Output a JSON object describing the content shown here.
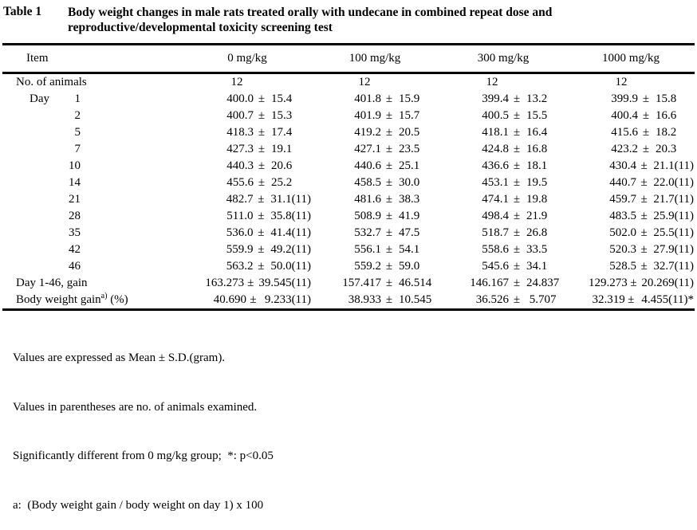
{
  "title": {
    "label": "Table 1",
    "lines": [
      "Body weight changes in male rats treated orally with undecane in combined repeat dose and",
      "reproductive/developmental toxicity screening test"
    ]
  },
  "pm_symbol": "±",
  "table": {
    "columns": [
      "Item",
      "0 mg/kg",
      "100 mg/kg",
      "300 mg/kg",
      "1000 mg/kg"
    ],
    "rows": [
      {
        "type": "count",
        "label": "No. of animals",
        "values": [
          "12",
          "12",
          "12",
          "12"
        ]
      },
      {
        "type": "day",
        "word": "Day",
        "day": "1",
        "cells": [
          {
            "v": "400.0",
            "sd": "15.4"
          },
          {
            "v": "401.8",
            "sd": "15.9"
          },
          {
            "v": "399.4",
            "sd": "13.2"
          },
          {
            "v": "399.9",
            "sd": "15.8"
          }
        ]
      },
      {
        "type": "day",
        "day": "2",
        "cells": [
          {
            "v": "400.7",
            "sd": "15.3"
          },
          {
            "v": "401.9",
            "sd": "15.7"
          },
          {
            "v": "400.5",
            "sd": "15.5"
          },
          {
            "v": "400.4",
            "sd": "16.6"
          }
        ]
      },
      {
        "type": "day",
        "day": "5",
        "cells": [
          {
            "v": "418.3",
            "sd": "17.4"
          },
          {
            "v": "419.2",
            "sd": "20.5"
          },
          {
            "v": "418.1",
            "sd": "16.4"
          },
          {
            "v": "415.6",
            "sd": "18.2"
          }
        ]
      },
      {
        "type": "day",
        "day": "7",
        "cells": [
          {
            "v": "427.3",
            "sd": "19.1"
          },
          {
            "v": "427.1",
            "sd": "23.5"
          },
          {
            "v": "424.8",
            "sd": "16.8"
          },
          {
            "v": "423.2",
            "sd": "20.3"
          }
        ]
      },
      {
        "type": "day",
        "day": "10",
        "cells": [
          {
            "v": "440.3",
            "sd": "20.6"
          },
          {
            "v": "440.6",
            "sd": "25.1"
          },
          {
            "v": "436.6",
            "sd": "18.1"
          },
          {
            "v": "430.4",
            "sd": "21.1",
            "n": "(11)"
          }
        ]
      },
      {
        "type": "day",
        "day": "14",
        "cells": [
          {
            "v": "455.6",
            "sd": "25.2"
          },
          {
            "v": "458.5",
            "sd": "30.0"
          },
          {
            "v": "453.1",
            "sd": "19.5"
          },
          {
            "v": "440.7",
            "sd": "22.0",
            "n": "(11)"
          }
        ]
      },
      {
        "type": "day",
        "day": "21",
        "cells": [
          {
            "v": "482.7",
            "sd": "31.1",
            "n": "(11)"
          },
          {
            "v": "481.6",
            "sd": "38.3"
          },
          {
            "v": "474.1",
            "sd": "19.8"
          },
          {
            "v": "459.7",
            "sd": "21.7",
            "n": "(11)"
          }
        ]
      },
      {
        "type": "day",
        "day": "28",
        "cells": [
          {
            "v": "511.0",
            "sd": "35.8",
            "n": "(11)"
          },
          {
            "v": "508.9",
            "sd": "41.9"
          },
          {
            "v": "498.4",
            "sd": "21.9"
          },
          {
            "v": "483.5",
            "sd": "25.9",
            "n": "(11)"
          }
        ]
      },
      {
        "type": "day",
        "day": "35",
        "cells": [
          {
            "v": "536.0",
            "sd": "41.4",
            "n": "(11)"
          },
          {
            "v": "532.7",
            "sd": "47.5"
          },
          {
            "v": "518.7",
            "sd": "26.8"
          },
          {
            "v": "502.0",
            "sd": "25.5",
            "n": "(11)"
          }
        ]
      },
      {
        "type": "day",
        "day": "42",
        "cells": [
          {
            "v": "559.9",
            "sd": "49.2",
            "n": "(11)"
          },
          {
            "v": "556.1",
            "sd": "54.1"
          },
          {
            "v": "558.6",
            "sd": "33.5"
          },
          {
            "v": "520.3",
            "sd": "27.9",
            "n": "(11)"
          }
        ]
      },
      {
        "type": "day",
        "day": "46",
        "cells": [
          {
            "v": "563.2",
            "sd": "50.0",
            "n": "(11)"
          },
          {
            "v": "559.2",
            "sd": "59.0"
          },
          {
            "v": "545.6",
            "sd": "34.1"
          },
          {
            "v": "528.5",
            "sd": "32.7",
            "n": "(11)"
          }
        ]
      },
      {
        "type": "stat",
        "label": "Day 1-46, gain",
        "cells": [
          {
            "v": "163.273",
            "sd": "39.545",
            "n": "(11)"
          },
          {
            "v": "157.417",
            "sd": "46.514"
          },
          {
            "v": "146.167",
            "sd": "24.837"
          },
          {
            "v": "129.273",
            "sd": "20.269",
            "n": "(11)"
          }
        ]
      },
      {
        "type": "stat",
        "label": "Body weight gain",
        "sup": "a)",
        "rest": " (%)",
        "cells": [
          {
            "v": "40.690",
            "sd": " 9.233",
            "n": "(11)"
          },
          {
            "v": "38.933",
            "sd": "10.545"
          },
          {
            "v": "36.526",
            "sd": " 5.707"
          },
          {
            "v": "32.319",
            "sd": " 4.455",
            "n": "(11)",
            "star": "*"
          }
        ]
      }
    ]
  },
  "footnotes": [
    "Values are expressed as Mean ± S.D.(gram).",
    "Values in parentheses are no. of animals examined.",
    "Significantly different from 0 mg/kg group;  *: p<0.05",
    "a:  (Body weight gain / body weight on day 1) x 100"
  ]
}
